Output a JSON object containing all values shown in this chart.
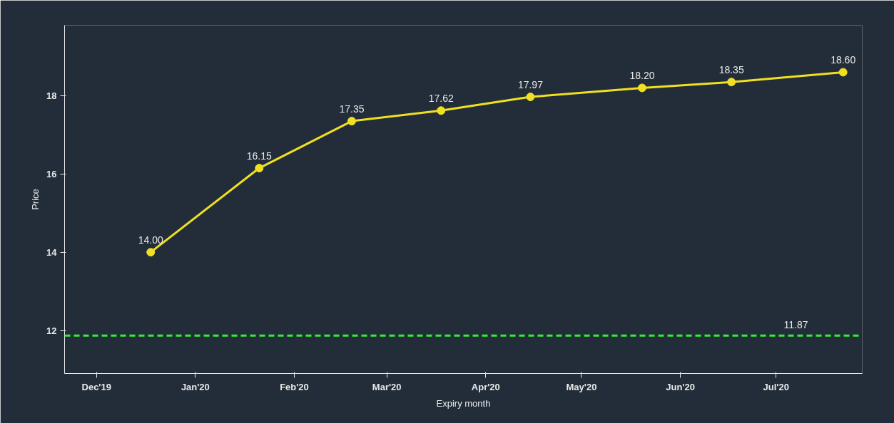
{
  "chart_data": {
    "type": "line",
    "xlabel": "Expiry month",
    "ylabel": "Price",
    "x": [
      "2019-12-18",
      "2020-01-21",
      "2020-02-19",
      "2020-03-18",
      "2020-04-15",
      "2020-05-20",
      "2020-06-17",
      "2020-07-22"
    ],
    "series": [
      {
        "color": "#f0e020",
        "values": [
          14.0,
          16.15,
          17.35,
          17.62,
          17.97,
          18.2,
          18.35,
          18.6
        ],
        "value_labels": [
          "14.00",
          "16.15",
          "17.35",
          "17.62",
          "17.97",
          "18.20",
          "18.35",
          "18.60"
        ]
      }
    ],
    "marker": "circle",
    "line_style": "solid",
    "grid": false,
    "xlim": [
      "2019-11-21",
      "2020-07-28"
    ],
    "xticks": [
      {
        "value": "2019-12-01",
        "label": "Dec'19"
      },
      {
        "value": "2020-01-01",
        "label": "Jan'20"
      },
      {
        "value": "2020-02-01",
        "label": "Feb'20"
      },
      {
        "value": "2020-03-01",
        "label": "Mar'20"
      },
      {
        "value": "2020-04-01",
        "label": "Apr'20"
      },
      {
        "value": "2020-05-01",
        "label": "May'20"
      },
      {
        "value": "2020-06-01",
        "label": "Jun'20"
      },
      {
        "value": "2020-07-01",
        "label": "Jul'20"
      }
    ],
    "ylim": [
      10.9,
      19.8
    ],
    "yticks": [
      12,
      14,
      16,
      18
    ],
    "ref_lines": [
      {
        "axis": "y",
        "value": 11.87,
        "label": "11.87",
        "color": "#33ee33",
        "line_style": "dashed"
      }
    ]
  }
}
